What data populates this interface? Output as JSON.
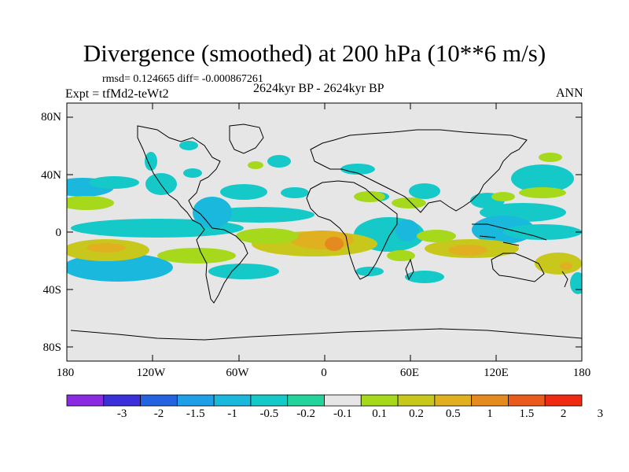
{
  "header": {
    "title": "Divergence (smoothed) at 200 hPa (10**6 m/s)",
    "stats": "rmsd= 0.124665 diff= -0.000867261",
    "period": "2624kyr BP - 2624kyr BP",
    "experiment": "Expt = tfMd2-teWt2",
    "season": "ANN"
  },
  "axes": {
    "lat_labels": [
      "80N",
      "40N",
      "0",
      "40S",
      "80S"
    ],
    "lon_labels": [
      "180",
      "120W",
      "60W",
      "0",
      "60E",
      "120E",
      "180"
    ]
  },
  "colorbar": {
    "labels": [
      "-3",
      "-2",
      "-1.5",
      "-1",
      "-0.5",
      "-0.2",
      "-0.1",
      "0.1",
      "0.2",
      "0.5",
      "1",
      "1.5",
      "2",
      "3"
    ],
    "colors": [
      "#8a2be2",
      "#3a2fd8",
      "#2463e0",
      "#1fa0e6",
      "#19b8dc",
      "#16c9c9",
      "#22d39b",
      "#e6e6e6",
      "#a6d81c",
      "#c8c81c",
      "#e0b020",
      "#e58a1e",
      "#ea5a1a",
      "#ee2a10"
    ]
  },
  "map": {
    "background_color": "#e6e6e6",
    "lat_range": [
      -90,
      90
    ],
    "lon_range": [
      -180,
      180
    ]
  }
}
